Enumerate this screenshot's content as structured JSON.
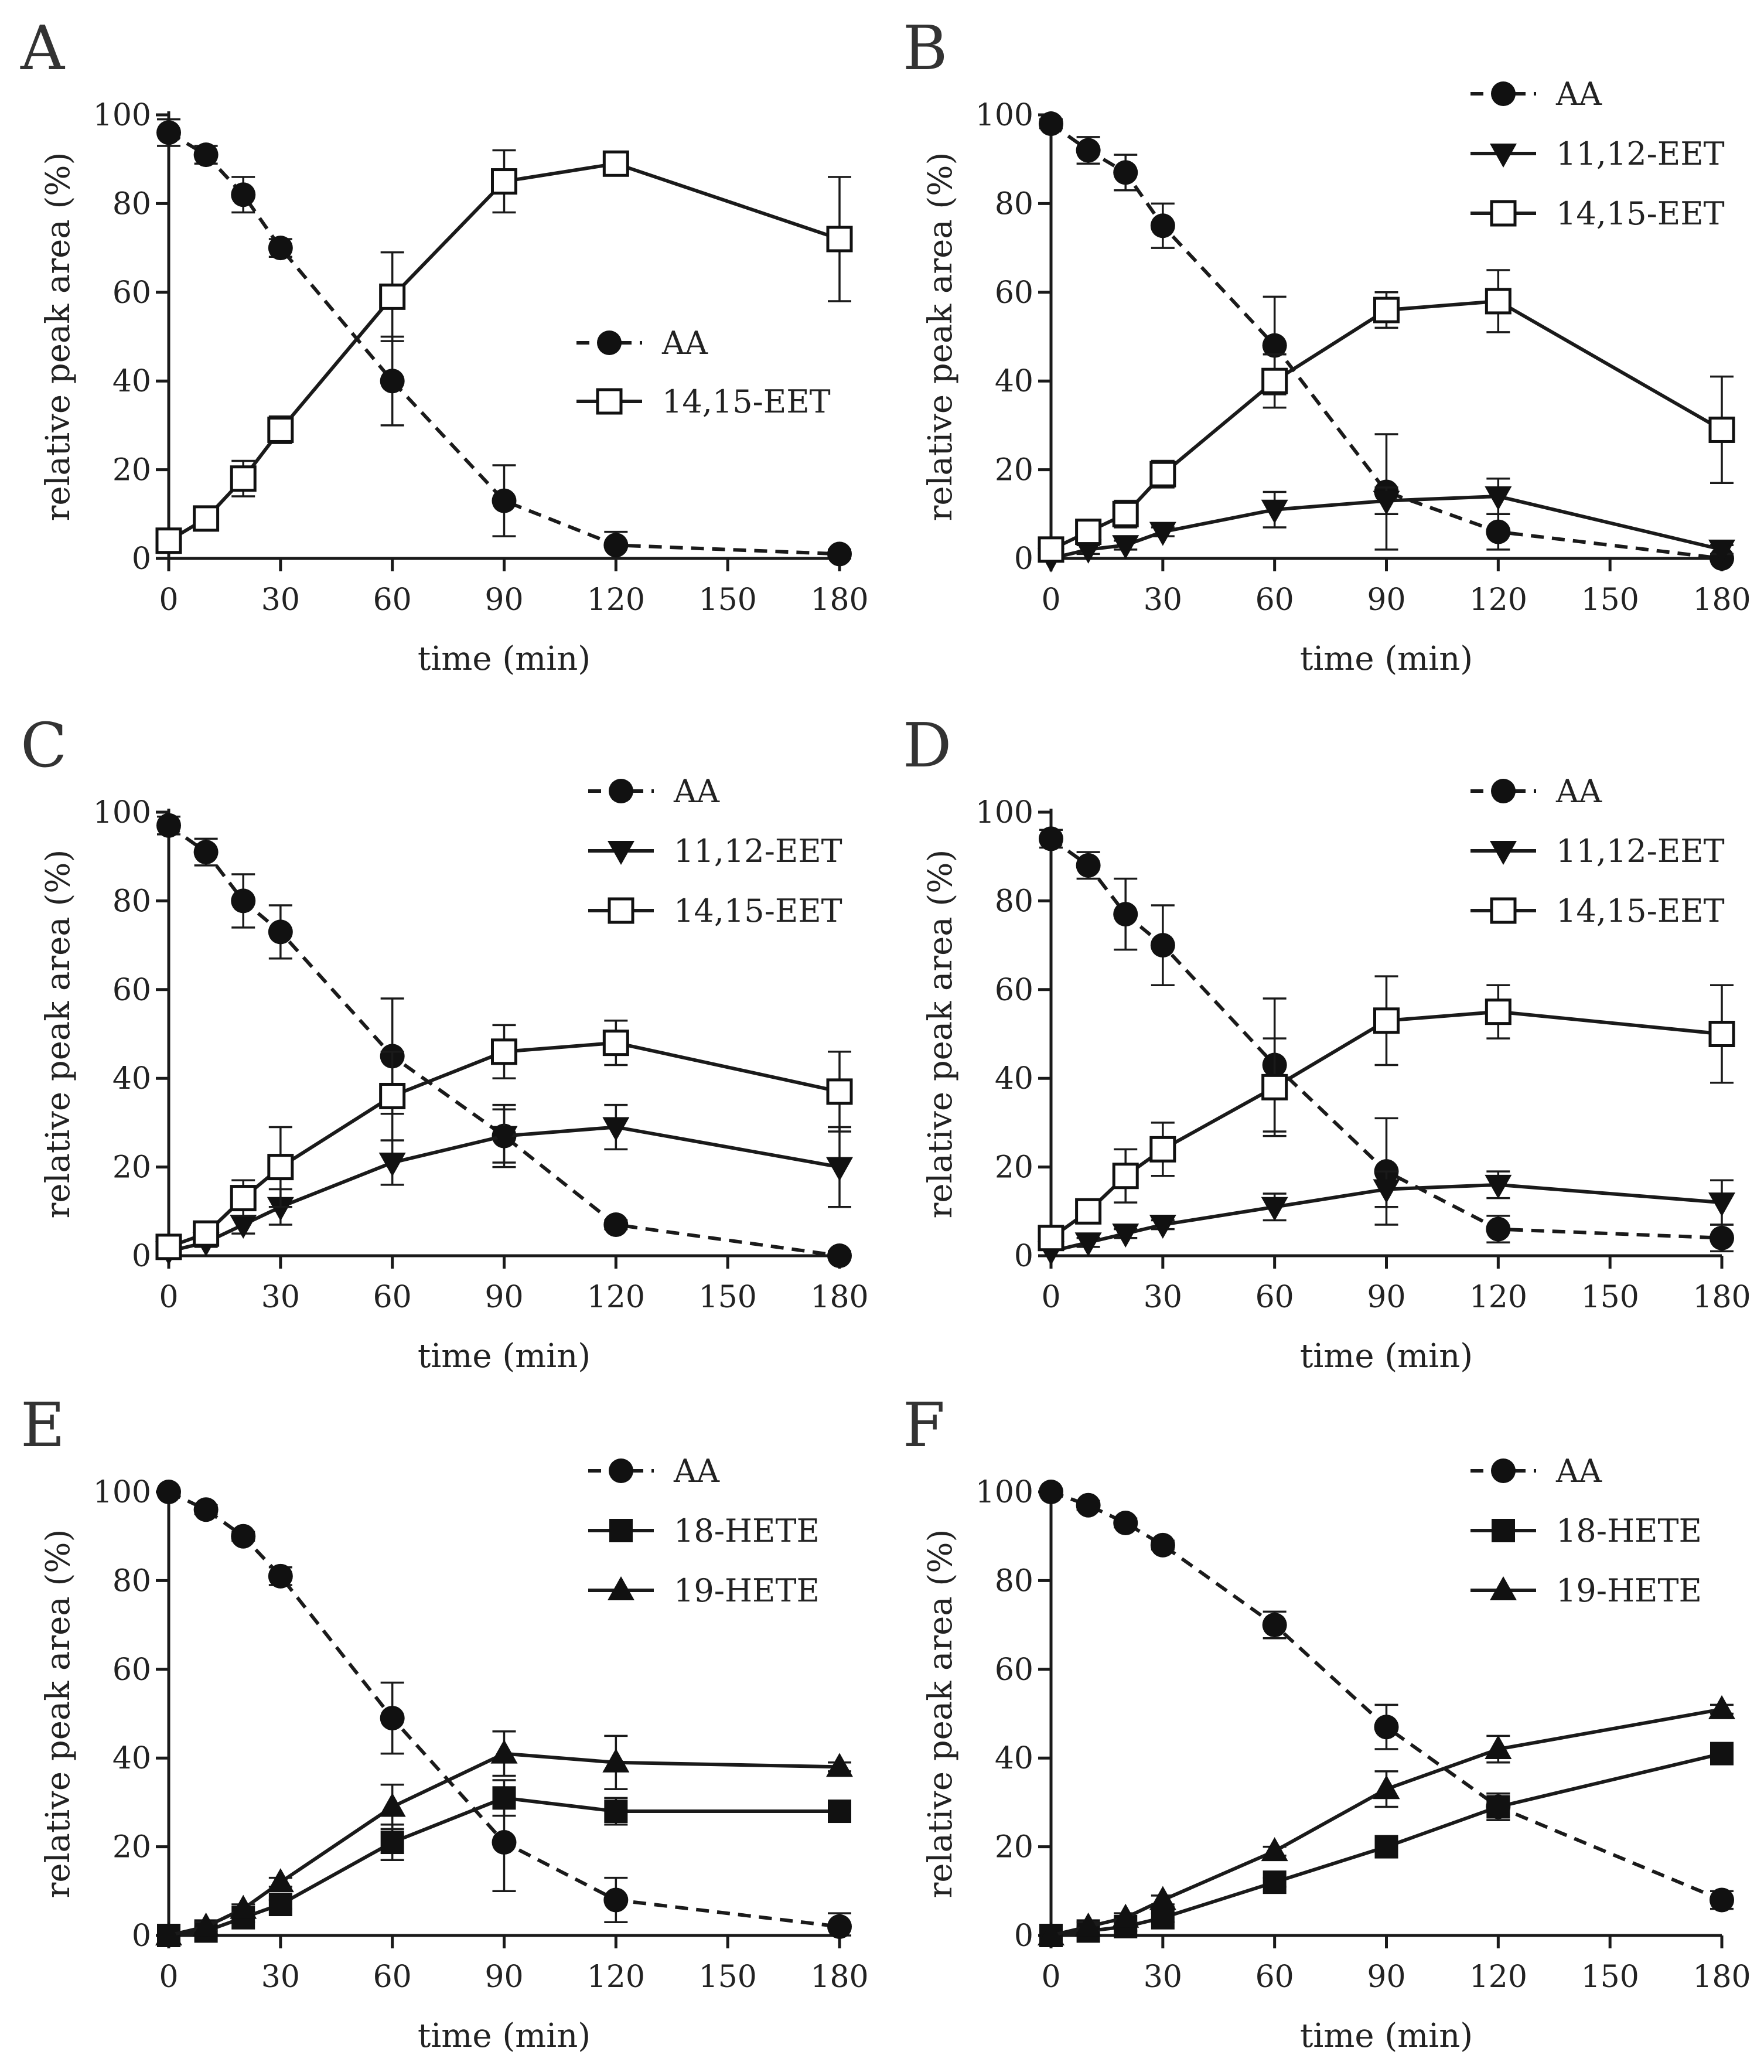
{
  "chart_data": [
    {
      "panel": "A",
      "type": "line",
      "xlabel": "time (min)",
      "ylabel": "relative peak area (%)",
      "xlim": [
        0,
        180
      ],
      "ylim": [
        0,
        100
      ],
      "xticks": [
        0,
        30,
        60,
        90,
        120,
        150,
        180
      ],
      "yticks": [
        0,
        20,
        40,
        60,
        80,
        100
      ],
      "legend_position": "center-right",
      "series": [
        {
          "name": "AA",
          "marker": "circle",
          "line": "dashed",
          "x": [
            0,
            10,
            20,
            30,
            60,
            90,
            120,
            180
          ],
          "y": [
            96,
            91,
            82,
            70,
            40,
            13,
            3,
            1
          ],
          "err": [
            3,
            2,
            4,
            2,
            10,
            8,
            3,
            1
          ]
        },
        {
          "name": "14,15-EET",
          "marker": "open-square",
          "line": "solid",
          "x": [
            0,
            10,
            20,
            30,
            60,
            90,
            120,
            180
          ],
          "y": [
            4,
            9,
            18,
            29,
            59,
            85,
            89,
            72
          ],
          "err": [
            2,
            2,
            4,
            3,
            10,
            7,
            2,
            14
          ]
        }
      ]
    },
    {
      "panel": "B",
      "type": "line",
      "xlabel": "time (min)",
      "ylabel": "relative peak area (%)",
      "xlim": [
        0,
        180
      ],
      "ylim": [
        0,
        100
      ],
      "xticks": [
        0,
        30,
        60,
        90,
        120,
        150,
        180
      ],
      "yticks": [
        0,
        20,
        40,
        60,
        80,
        100
      ],
      "legend_position": "top-right",
      "series": [
        {
          "name": "AA",
          "marker": "circle",
          "line": "dashed",
          "x": [
            0,
            10,
            20,
            30,
            60,
            90,
            120,
            180
          ],
          "y": [
            98,
            92,
            87,
            75,
            48,
            15,
            6,
            0
          ],
          "err": [
            1,
            3,
            4,
            5,
            11,
            13,
            4,
            1
          ]
        },
        {
          "name": "11,12-EET",
          "marker": "down-triangle",
          "line": "solid",
          "x": [
            0,
            10,
            20,
            30,
            60,
            90,
            120,
            180
          ],
          "y": [
            0,
            2,
            3,
            6,
            11,
            13,
            14,
            2
          ],
          "err": [
            1,
            1,
            1,
            1,
            4,
            3,
            4,
            1
          ]
        },
        {
          "name": "14,15-EET",
          "marker": "open-square",
          "line": "solid",
          "x": [
            0,
            10,
            20,
            30,
            60,
            90,
            120,
            180
          ],
          "y": [
            2,
            6,
            10,
            19,
            40,
            56,
            58,
            29
          ],
          "err": [
            1,
            2,
            3,
            3,
            6,
            4,
            7,
            12
          ]
        }
      ]
    },
    {
      "panel": "C",
      "type": "line",
      "xlabel": "time (min)",
      "ylabel": "relative peak area (%)",
      "xlim": [
        0,
        180
      ],
      "ylim": [
        0,
        100
      ],
      "xticks": [
        0,
        30,
        60,
        90,
        120,
        150,
        180
      ],
      "yticks": [
        0,
        20,
        40,
        60,
        80,
        100
      ],
      "legend_position": "top-right",
      "series": [
        {
          "name": "AA",
          "marker": "circle",
          "line": "dashed",
          "x": [
            0,
            10,
            20,
            30,
            60,
            90,
            120,
            180
          ],
          "y": [
            97,
            91,
            80,
            73,
            45,
            27,
            7,
            0
          ],
          "err": [
            2,
            3,
            6,
            6,
            13,
            7,
            1,
            1
          ]
        },
        {
          "name": "11,12-EET",
          "marker": "down-triangle",
          "line": "solid",
          "x": [
            0,
            10,
            20,
            30,
            60,
            90,
            120,
            180
          ],
          "y": [
            1,
            3,
            7,
            11,
            21,
            27,
            29,
            20
          ],
          "err": [
            1,
            1,
            2,
            4,
            5,
            6,
            5,
            9
          ]
        },
        {
          "name": "14,15-EET",
          "marker": "open-square",
          "line": "solid",
          "x": [
            0,
            10,
            20,
            30,
            60,
            90,
            120,
            180
          ],
          "y": [
            2,
            5,
            13,
            20,
            36,
            46,
            48,
            37
          ],
          "err": [
            1,
            2,
            4,
            9,
            10,
            6,
            5,
            9
          ]
        }
      ]
    },
    {
      "panel": "D",
      "type": "line",
      "xlabel": "time (min)",
      "ylabel": "relative peak area (%)",
      "xlim": [
        0,
        180
      ],
      "ylim": [
        0,
        100
      ],
      "xticks": [
        0,
        30,
        60,
        90,
        120,
        150,
        180
      ],
      "yticks": [
        0,
        20,
        40,
        60,
        80,
        100
      ],
      "legend_position": "top-right",
      "series": [
        {
          "name": "AA",
          "marker": "circle",
          "line": "dashed",
          "x": [
            0,
            10,
            20,
            30,
            60,
            90,
            120,
            180
          ],
          "y": [
            94,
            88,
            77,
            70,
            43,
            19,
            6,
            4
          ],
          "err": [
            2,
            3,
            8,
            9,
            15,
            12,
            3,
            3
          ]
        },
        {
          "name": "11,12-EET",
          "marker": "down-triangle",
          "line": "solid",
          "x": [
            0,
            10,
            20,
            30,
            60,
            90,
            120,
            180
          ],
          "y": [
            1,
            3,
            5,
            7,
            11,
            15,
            16,
            12
          ],
          "err": [
            1,
            1,
            1,
            1,
            3,
            4,
            3,
            5
          ]
        },
        {
          "name": "14,15-EET",
          "marker": "open-square",
          "line": "solid",
          "x": [
            0,
            10,
            20,
            30,
            60,
            90,
            120,
            180
          ],
          "y": [
            4,
            10,
            18,
            24,
            38,
            53,
            55,
            50
          ],
          "err": [
            1,
            2,
            6,
            6,
            11,
            10,
            6,
            11
          ]
        }
      ]
    },
    {
      "panel": "E",
      "type": "line",
      "xlabel": "time (min)",
      "ylabel": "relative peak area (%)",
      "xlim": [
        0,
        180
      ],
      "ylim": [
        0,
        100
      ],
      "xticks": [
        0,
        30,
        60,
        90,
        120,
        150,
        180
      ],
      "yticks": [
        0,
        20,
        40,
        60,
        80,
        100
      ],
      "legend_position": "top-right",
      "series": [
        {
          "name": "AA",
          "marker": "circle",
          "line": "dashed",
          "x": [
            0,
            10,
            20,
            30,
            60,
            90,
            120,
            180
          ],
          "y": [
            100,
            96,
            90,
            81,
            49,
            21,
            8,
            2
          ],
          "err": [
            0,
            1,
            1,
            2,
            8,
            11,
            5,
            3
          ]
        },
        {
          "name": "18-HETE",
          "marker": "square",
          "line": "solid",
          "x": [
            0,
            10,
            20,
            30,
            60,
            90,
            120,
            180
          ],
          "y": [
            0,
            1,
            4,
            7,
            21,
            31,
            28,
            28
          ],
          "err": [
            0,
            1,
            1,
            1,
            4,
            4,
            3,
            1
          ]
        },
        {
          "name": "19-HETE",
          "marker": "triangle",
          "line": "solid",
          "x": [
            0,
            10,
            20,
            30,
            60,
            90,
            120,
            180
          ],
          "y": [
            0,
            2,
            6,
            12,
            29,
            41,
            39,
            38
          ],
          "err": [
            0,
            1,
            1,
            1,
            5,
            5,
            6,
            1
          ]
        }
      ]
    },
    {
      "panel": "F",
      "type": "line",
      "xlabel": "time (min)",
      "ylabel": "relative peak area (%)",
      "xlim": [
        0,
        180
      ],
      "ylim": [
        0,
        100
      ],
      "xticks": [
        0,
        30,
        60,
        90,
        120,
        150,
        180
      ],
      "yticks": [
        0,
        20,
        40,
        60,
        80,
        100
      ],
      "legend_position": "top-right",
      "series": [
        {
          "name": "AA",
          "marker": "circle",
          "line": "dashed",
          "x": [
            0,
            10,
            20,
            30,
            60,
            90,
            120,
            180
          ],
          "y": [
            100,
            97,
            93,
            88,
            70,
            47,
            29,
            8
          ],
          "err": [
            0,
            1,
            1,
            1,
            3,
            5,
            3,
            2
          ]
        },
        {
          "name": "18-HETE",
          "marker": "square",
          "line": "solid",
          "x": [
            0,
            10,
            20,
            30,
            60,
            90,
            120,
            180
          ],
          "y": [
            0,
            1,
            2,
            4,
            12,
            20,
            29,
            41
          ],
          "err": [
            0,
            1,
            1,
            1,
            1,
            1,
            3,
            1
          ]
        },
        {
          "name": "19-HETE",
          "marker": "triangle",
          "line": "solid",
          "x": [
            0,
            10,
            20,
            30,
            60,
            90,
            120,
            180
          ],
          "y": [
            0,
            2,
            4,
            8,
            19,
            33,
            42,
            51
          ],
          "err": [
            0,
            1,
            1,
            1,
            1,
            4,
            3,
            1
          ]
        }
      ]
    }
  ]
}
